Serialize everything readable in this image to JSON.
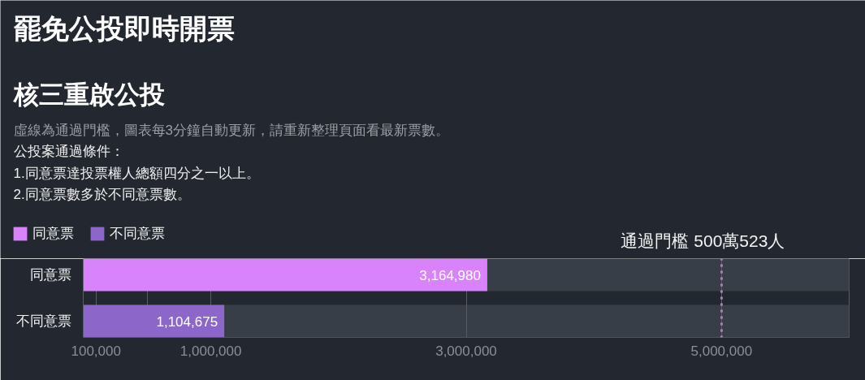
{
  "chart_data": {
    "type": "bar",
    "orientation": "horizontal",
    "stacked": true,
    "title": "罷免公投即時開票",
    "subtitle": "核三重啟公投",
    "annotations": [
      "虛線為通過門檻，圖表每3分鐘自動更新，請重新整理頁面看最新票數。",
      "公投案通過條件：",
      "1.同意票達投票權人總額四分之一以上。",
      "2.同意票數多於不同意票數。"
    ],
    "categories": [
      "同意票",
      "不同意票"
    ],
    "series": [
      {
        "name": "同意票",
        "color": "#d883fb",
        "values": [
          3164980,
          null
        ],
        "value_labels": [
          "3,164,980",
          null
        ]
      },
      {
        "name": "不同意票",
        "color": "#8c67c9",
        "values": [
          null,
          1104675
        ],
        "value_labels": [
          null,
          "1,104,675"
        ]
      }
    ],
    "xlim": [
      0,
      6000000
    ],
    "xticks": [
      {
        "value": 100000,
        "label": "100,000"
      },
      {
        "value": 500000,
        "label": null
      },
      {
        "value": 1000000,
        "label": "1,000,000"
      },
      {
        "value": 3000000,
        "label": "3,000,000"
      },
      {
        "value": 5000000,
        "label": "5,000,000"
      }
    ],
    "ref_lines": [
      {
        "axis": "x",
        "value": 5000523,
        "label": "通過門檻 500萬523人",
        "color": "#b27bb4",
        "line_style": "dotted"
      }
    ],
    "grid": "x",
    "legend": "top left"
  }
}
